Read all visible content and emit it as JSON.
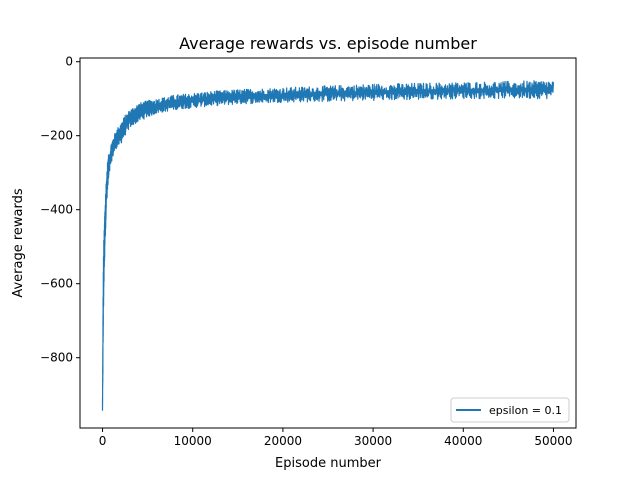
{
  "chart_data": {
    "type": "line",
    "title": "Average rewards vs. episode number",
    "xlabel": "Episode number",
    "ylabel": "Average rewards",
    "xlim": [
      -2500,
      52500
    ],
    "ylim": [
      -990,
      10
    ],
    "xticks": [
      0,
      10000,
      20000,
      30000,
      40000,
      50000
    ],
    "xtick_labels": [
      "0",
      "10000",
      "20000",
      "30000",
      "40000",
      "50000"
    ],
    "yticks": [
      0,
      -200,
      -400,
      -600,
      -800
    ],
    "ytick_labels": [
      "0",
      "−200",
      "−400",
      "−600",
      "−800"
    ],
    "grid": false,
    "legend_position": "lower-right",
    "series": [
      {
        "name": "epsilon = 0.1",
        "color": "#1f77b4",
        "x": [
          0,
          50,
          100,
          200,
          300,
          400,
          500,
          600,
          800,
          1000,
          1250,
          1500,
          2000,
          2500,
          3000,
          3500,
          4000,
          5000,
          6000,
          7000,
          8000,
          10000,
          12000,
          15000,
          20000,
          25000,
          30000,
          35000,
          40000,
          45000,
          50000
        ],
        "upper": [
          -900,
          -660,
          -520,
          -430,
          -360,
          -320,
          -280,
          -260,
          -235,
          -215,
          -200,
          -185,
          -165,
          -145,
          -130,
          -120,
          -112,
          -105,
          -100,
          -95,
          -90,
          -85,
          -80,
          -75,
          -70,
          -65,
          -60,
          -58,
          -55,
          -53,
          -50
        ],
        "lower": [
          -950,
          -820,
          -690,
          -560,
          -480,
          -420,
          -380,
          -350,
          -300,
          -270,
          -250,
          -235,
          -225,
          -200,
          -180,
          -170,
          -162,
          -150,
          -140,
          -135,
          -130,
          -125,
          -120,
          -115,
          -110,
          -108,
          -105,
          -103,
          -100,
          -100,
          -100
        ]
      }
    ]
  }
}
